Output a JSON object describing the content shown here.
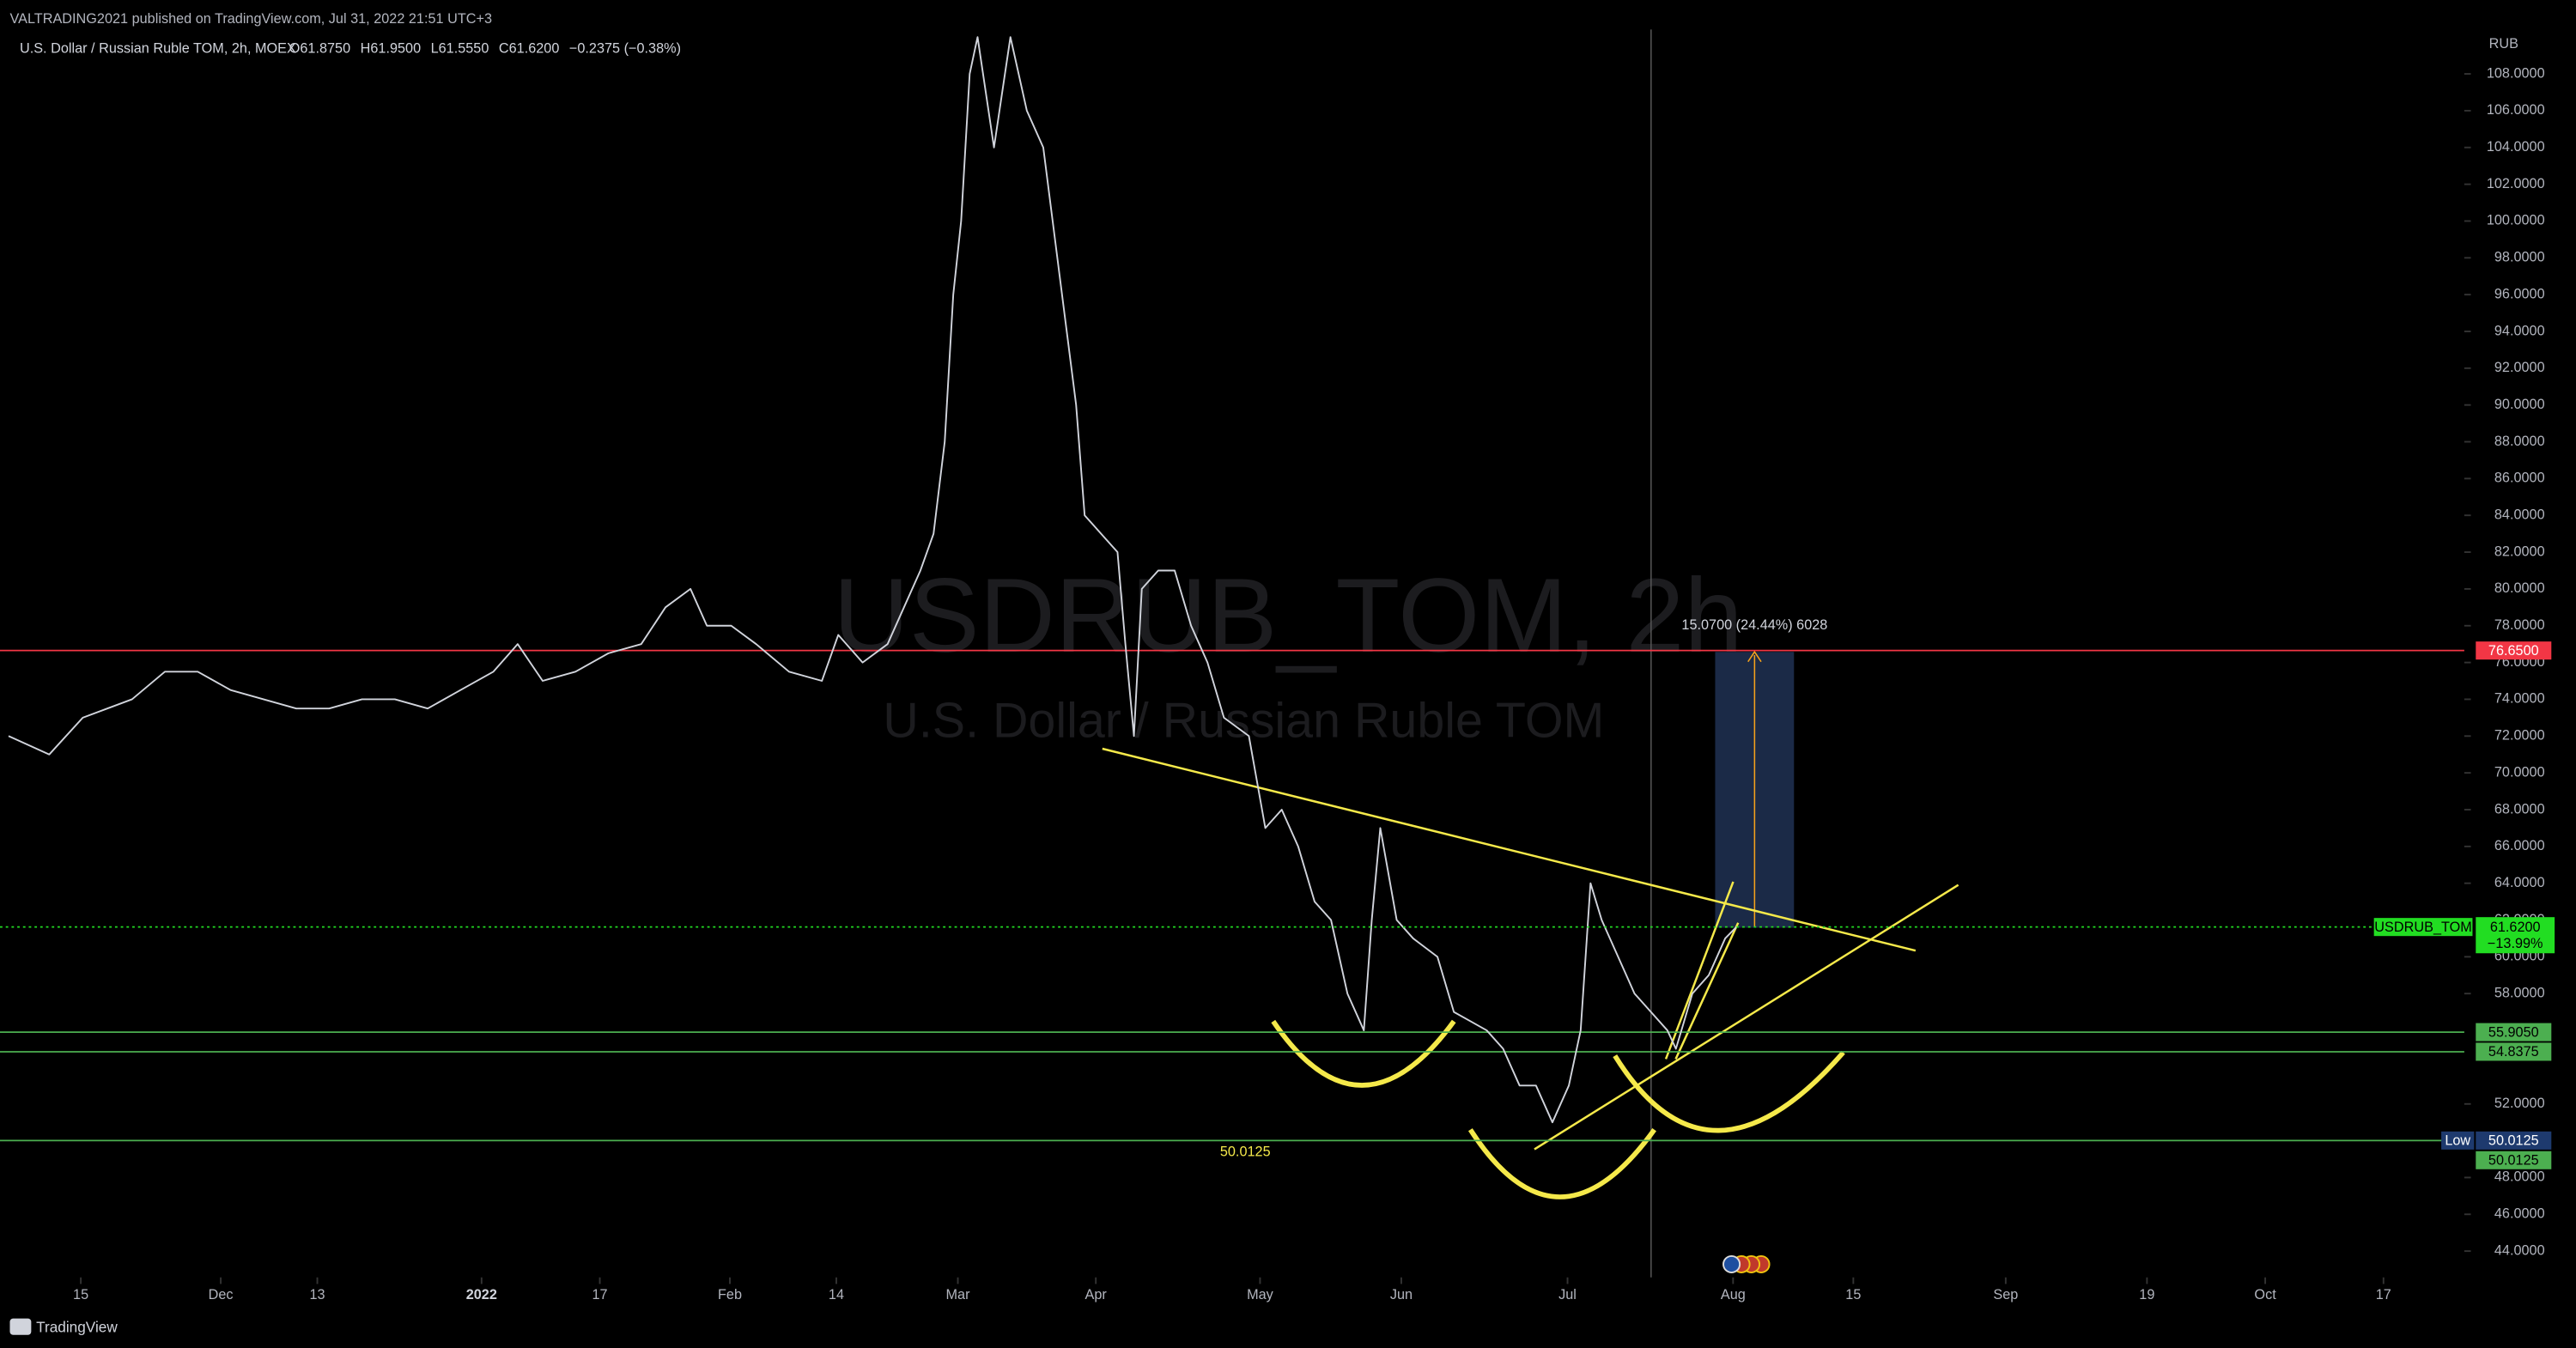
{
  "header": {
    "publisher": "VALTRADING2021 published on TradingView.com, Jul 31, 2022 21:51 UTC+3",
    "footer": "TradingView"
  },
  "chart_data": {
    "type": "line",
    "title": "U.S. Dollar / Russian Ruble TOM, 2h, MOEX",
    "ohlc": [
      "O61.8750",
      "H61.9500",
      "L61.5550",
      "C61.6200",
      "−0.2375 (−0.38%)"
    ],
    "watermark": [
      "USDRUB_TOM, 2h",
      "U.S. Dollar / Russian Ruble TOM"
    ],
    "y_axis_label": "RUB",
    "x": [
      -11,
      -4.8,
      0.3,
      7.8,
      12.8,
      17.8,
      22.8,
      27.8,
      32.8,
      37.8,
      42.8,
      47.8,
      52.8,
      57.8,
      62.8,
      66.5,
      70.3,
      75.3,
      80.3,
      85.3,
      89,
      92.8,
      95.3,
      99,
      102.8,
      107.8,
      112.8,
      115.3,
      119,
      122.8,
      125.3,
      127.8,
      129.8,
      131.5,
      132.8,
      134,
      135.3,
      136.5,
      139,
      141.5,
      144,
      146.5,
      149,
      151.5,
      152.8,
      155.3,
      157.8,
      159,
      160.3,
      161.5,
      164,
      166.5,
      169,
      171.5,
      174,
      177.8,
      180.3,
      182.8,
      185.3,
      187.8,
      190.3,
      192.8,
      195.3,
      196.5,
      197.8,
      200.3,
      202.8,
      206.5,
      209,
      211.5,
      214,
      216.5,
      219,
      221.5,
      224,
      226.5,
      228.3,
      229.8,
      231.5,
      234,
      236.5,
      239,
      241.5,
      242.8,
      245.3,
      247.8,
      250.3,
      252
    ],
    "series": [
      {
        "name": "USDRUB_TOM",
        "color": "#d1d4dc",
        "values": [
          72,
          71,
          73,
          74,
          75.5,
          75.5,
          74.5,
          74,
          73.5,
          73.5,
          74,
          74,
          73.5,
          74.5,
          75.5,
          77,
          75,
          75.5,
          76.5,
          77,
          79,
          80,
          78,
          78,
          77,
          75.5,
          75,
          77.5,
          76,
          77,
          79,
          81,
          83,
          88,
          96,
          100,
          108,
          110,
          104,
          110,
          106,
          104,
          97,
          90,
          84,
          83,
          82,
          77,
          72,
          80,
          81,
          81,
          78,
          76,
          73,
          72,
          67,
          68,
          66,
          63,
          62,
          58,
          56,
          62,
          67,
          62,
          61,
          60,
          57,
          56.5,
          56,
          55,
          53,
          53,
          51,
          53,
          56,
          64,
          62,
          60,
          58,
          57,
          56,
          55,
          58,
          59,
          61,
          61.62
        ]
      }
    ],
    "last_price": {
      "value": 61.62,
      "label": "61.6200",
      "change": "−13.99%",
      "color": "#22dd22"
    },
    "levels": [
      {
        "value": 76.65,
        "label": "76.6500",
        "color": "#f23645"
      },
      {
        "value": 55.905,
        "label": "55.9050",
        "color": "#4caf50"
      },
      {
        "value": 54.8375,
        "label": "54.8375",
        "color": "#4caf50"
      },
      {
        "value": 50.0125,
        "label": "50.0125",
        "color": "#4caf50"
      }
    ],
    "low": {
      "name": "Low",
      "value": 50.0125,
      "label": "50.0125",
      "color": "#1e3a6e"
    },
    "annotations": {
      "measure": "15.0700 (24.44%) 6028",
      "level_note": "50.0125"
    },
    "xlim": [
      -12.3,
      362.8
    ],
    "ylim": [
      42.57,
      110.41
    ],
    "xticks": [
      {
        "value": 0,
        "label": "15"
      },
      {
        "value": 21.3,
        "label": "Dec"
      },
      {
        "value": 36,
        "label": "13"
      },
      {
        "value": 61,
        "label": "2022"
      },
      {
        "value": 79,
        "label": "17"
      },
      {
        "value": 98.8,
        "label": "Feb"
      },
      {
        "value": 115,
        "label": "14"
      },
      {
        "value": 133.5,
        "label": "Mar"
      },
      {
        "value": 154.5,
        "label": "Apr"
      },
      {
        "value": 179.5,
        "label": "May"
      },
      {
        "value": 201,
        "label": "Jun"
      },
      {
        "value": 226.3,
        "label": "Jul"
      },
      {
        "value": 251.5,
        "label": "Aug"
      },
      {
        "value": 269.8,
        "label": "15"
      },
      {
        "value": 293,
        "label": "Sep"
      },
      {
        "value": 314.5,
        "label": "19"
      },
      {
        "value": 332.5,
        "label": "Oct"
      },
      {
        "value": 350.5,
        "label": "17"
      }
    ],
    "yticks": [
      {
        "value": 44,
        "label": "44.0000"
      },
      {
        "value": 46,
        "label": "46.0000"
      },
      {
        "value": 48,
        "label": "48.0000"
      },
      {
        "value": 52,
        "label": "52.0000"
      },
      {
        "value": 58,
        "label": "58.0000"
      },
      {
        "value": 60,
        "label": "60.0000"
      },
      {
        "value": 62,
        "label": "62.0000"
      },
      {
        "value": 64,
        "label": "64.0000"
      },
      {
        "value": 66,
        "label": "66.0000"
      },
      {
        "value": 68,
        "label": "68.0000"
      },
      {
        "value": 70,
        "label": "70.0000"
      },
      {
        "value": 72,
        "label": "72.0000"
      },
      {
        "value": 74,
        "label": "74.0000"
      },
      {
        "value": 76,
        "label": "76.0000"
      },
      {
        "value": 78,
        "label": "78.0000"
      },
      {
        "value": 80,
        "label": "80.0000"
      },
      {
        "value": 82,
        "label": "82.0000"
      },
      {
        "value": 84,
        "label": "84.0000"
      },
      {
        "value": 86,
        "label": "86.0000"
      },
      {
        "value": 88,
        "label": "88.0000"
      },
      {
        "value": 90,
        "label": "90.0000"
      },
      {
        "value": 92,
        "label": "92.0000"
      },
      {
        "value": 94,
        "label": "94.0000"
      },
      {
        "value": 96,
        "label": "96.0000"
      },
      {
        "value": 98,
        "label": "98.0000"
      },
      {
        "value": 100,
        "label": "100.0000"
      },
      {
        "value": 102,
        "label": "102.0000"
      },
      {
        "value": 104,
        "label": "104.0000"
      },
      {
        "value": 106,
        "label": "106.0000"
      },
      {
        "value": 108,
        "label": "108.0000"
      }
    ]
  }
}
